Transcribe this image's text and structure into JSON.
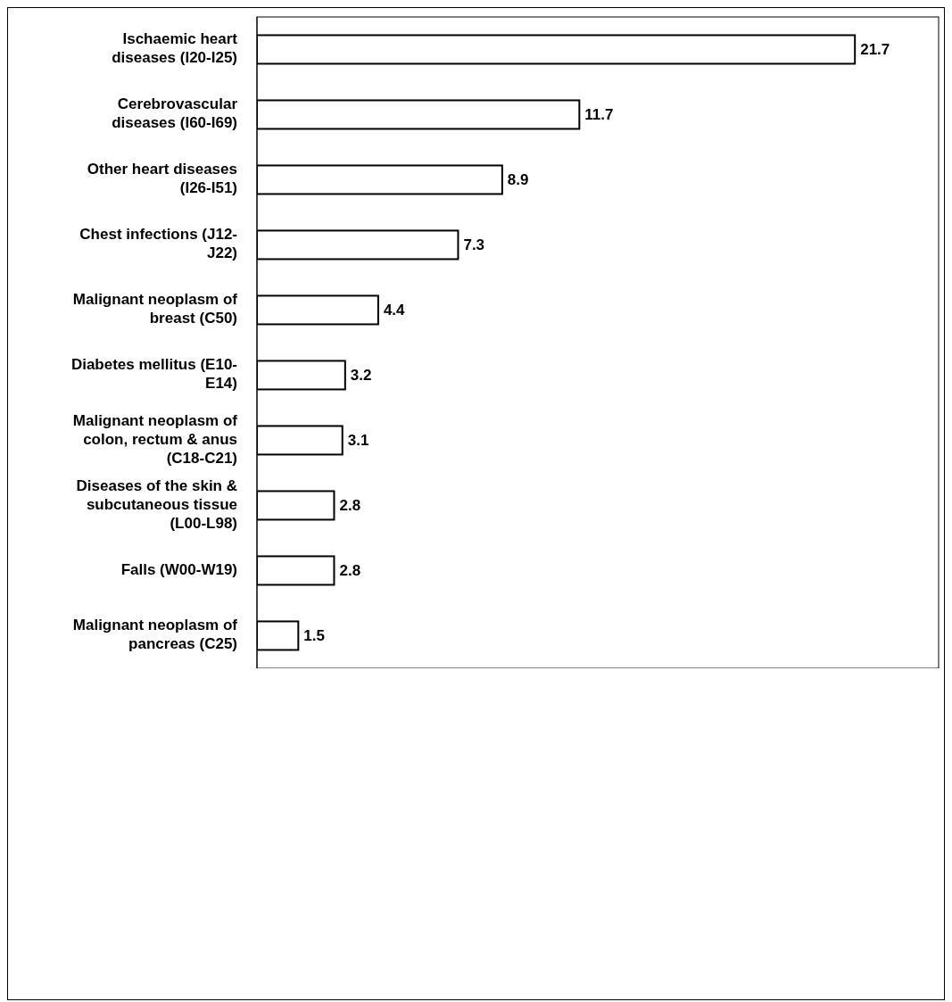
{
  "chart_data": {
    "type": "bar",
    "orientation": "horizontal",
    "categories": [
      "Ischaemic heart diseases (I20-I25)",
      "Cerebrovascular diseases (I60-I69)",
      "Other heart diseases (I26-I51)",
      "Chest infections (J12-J22)",
      "Malignant neoplasm of breast (C50)",
      "Diabetes mellitus (E10-E14)",
      "Malignant neoplasm of colon, rectum & anus (C18-C21)",
      "Diseases of the skin & subcutaneous tissue (L00-L98)",
      "Falls (W00-W19)",
      "Malignant neoplasm of pancreas (C25)"
    ],
    "values": [
      21.7,
      11.7,
      8.9,
      7.3,
      4.4,
      3.2,
      3.1,
      2.8,
      2.8,
      1.5
    ],
    "color": "#ffffff",
    "data_labels": true,
    "grid": false,
    "legend": false
  }
}
